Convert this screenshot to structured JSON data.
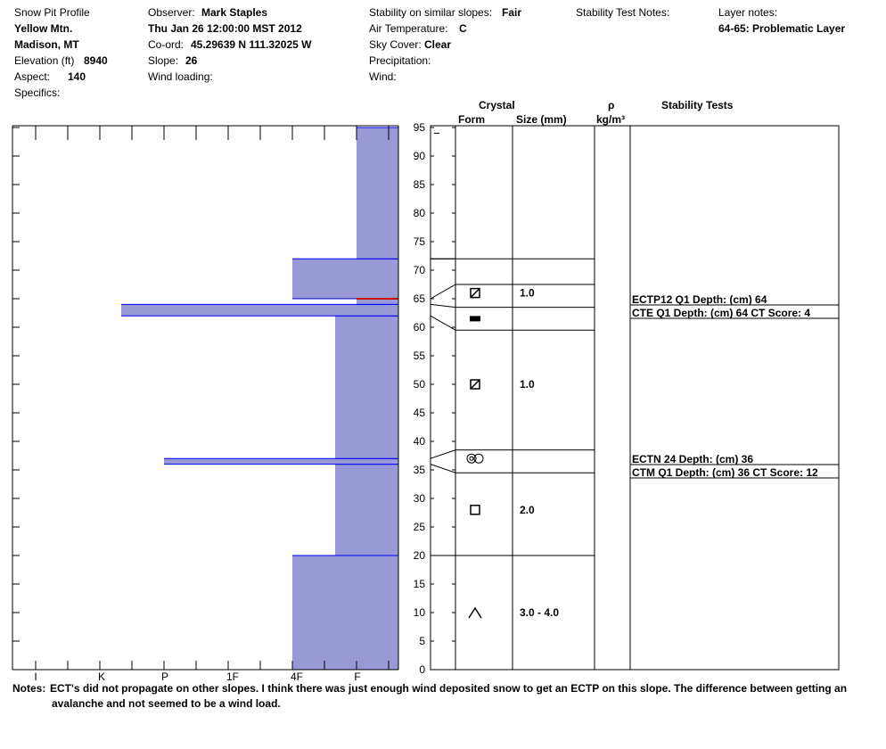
{
  "header": {
    "col1": {
      "title": "Snow Pit Profile",
      "location": "Yellow Mtn.",
      "region": "Madison, MT",
      "elevation_label": "Elevation (ft)",
      "elevation_value": "8940",
      "aspect_label": "Aspect:",
      "aspect_value": "140",
      "specifics_label": "Specifics:"
    },
    "col2": {
      "observer_label": "Observer:",
      "observer_value": "Mark Staples",
      "date": "Thu Jan 26 12:00:00 MST 2012",
      "coord_label": "Co-ord:",
      "coord_value": "45.29639 N 111.32025 W",
      "slope_label": "Slope:",
      "slope_value": "26",
      "wind_loading_label": "Wind loading:"
    },
    "col3": {
      "stability_label": "Stability on similar slopes:",
      "stability_value": "Fair",
      "air_temp_label": "Air Temperature:",
      "air_temp_value": "C",
      "sky_label": "Sky Cover:",
      "sky_value": "Clear",
      "precip_label": "Precipitation:",
      "wind_label": "Wind:"
    },
    "col4": {
      "stability_notes_label": "Stability Test Notes:"
    },
    "col5": {
      "layer_notes_label": "Layer notes:",
      "layer_notes_value": "64-65: Problematic Layer"
    }
  },
  "table_headers": {
    "crystal": "Crystal",
    "form": "Form",
    "size": "Size (mm)",
    "rho": "ρ",
    "density_unit": "kg/m³",
    "stability_tests": "Stability Tests"
  },
  "notes": {
    "label": "Notes:",
    "line1": "ECT's did not propagate on other slopes.  I think there was just enough wind deposited snow to get an ECTP on this slope.  The difference between getting an",
    "line2": "avalanche and not seemed to be a wind load."
  },
  "colors": {
    "bar_fill": "#9999d6",
    "bar_edge": "#0000ff",
    "highlight": "#cc0000"
  },
  "chart_data": {
    "type": "bar",
    "orientation": "horizontal",
    "hardness_scale": [
      "I",
      "K",
      "P",
      "1F",
      "4F",
      "F"
    ],
    "depth_range": [
      0,
      95
    ],
    "depth_ticks": [
      0,
      5,
      10,
      15,
      20,
      25,
      30,
      35,
      40,
      45,
      50,
      55,
      60,
      65,
      70,
      75,
      80,
      85,
      90,
      95
    ],
    "hardness_layers": [
      {
        "bottom": 0,
        "top": 20,
        "hardness": "4F"
      },
      {
        "bottom": 20,
        "top": 36,
        "hardness": "4F-"
      },
      {
        "bottom": 36,
        "top": 37,
        "hardness": "P+"
      },
      {
        "bottom": 37,
        "top": 62,
        "hardness": "4F-"
      },
      {
        "bottom": 62,
        "top": 64,
        "hardness": "K"
      },
      {
        "bottom": 64,
        "top": 65,
        "hardness": "F"
      },
      {
        "bottom": 65,
        "top": 72,
        "hardness": "4F"
      },
      {
        "bottom": 72,
        "top": 95,
        "hardness": "F"
      }
    ],
    "crystal_layers": [
      {
        "depth": 10,
        "form": "depth-hoar-icon",
        "size": "3.0 - 4.0"
      },
      {
        "depth": 28,
        "form": "faceted-icon",
        "size": "2.0"
      },
      {
        "depth": 37,
        "form": "surface-hoar-icon",
        "size": ""
      },
      {
        "depth": 50,
        "form": "rounding-facets-icon",
        "size": "1.0"
      },
      {
        "depth": 61.5,
        "form": "melt-freeze-crust-icon",
        "size": ""
      },
      {
        "depth": 66,
        "form": "rounding-facets-icon",
        "size": "1.0"
      }
    ],
    "stability_tests": [
      {
        "depth": 64,
        "text": "ECTP12 Q1 Depth: (cm) 64"
      },
      {
        "depth": 64,
        "text": "CTE Q1 Depth: (cm) 64 CT Score: 4"
      },
      {
        "depth": 36,
        "text": "ECTN 24   Depth: (cm) 36"
      },
      {
        "depth": 36,
        "text": "CTM Q1 Depth: (cm) 36 CT Score: 12"
      }
    ]
  }
}
